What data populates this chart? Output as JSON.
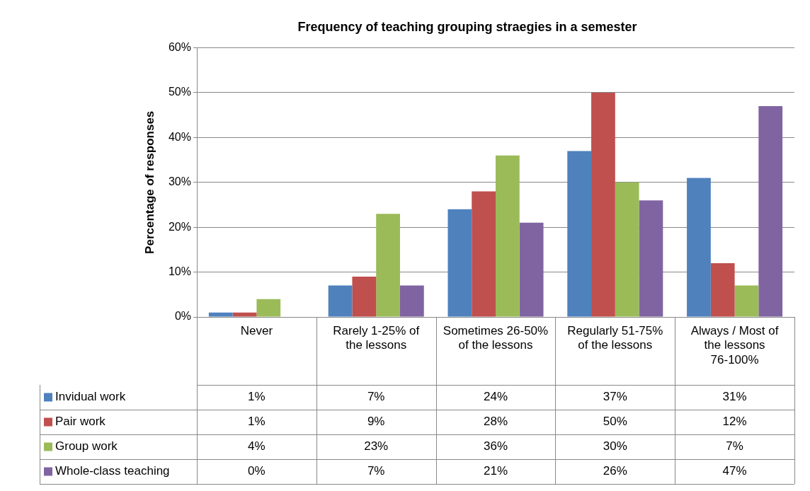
{
  "chart_data": {
    "type": "bar",
    "title": "Frequency of teaching grouping straegies in a semester",
    "ylabel": "Percentage of responses",
    "categories": [
      "Never",
      "Rarely 1-25% of the lessons",
      "Sometimes 26-50% of the lessons",
      "Regularly 51-75% of the lessons",
      "Always / Most of the lessons 76-100%"
    ],
    "series": [
      {
        "name": "Invidual work",
        "color": "#4f81bd",
        "values": [
          1,
          7,
          24,
          37,
          31
        ],
        "value_labels": [
          "1%",
          "7%",
          "24%",
          "37%",
          "31%"
        ]
      },
      {
        "name": "Pair work",
        "color": "#c0504d",
        "values": [
          1,
          9,
          28,
          50,
          12
        ],
        "value_labels": [
          "1%",
          "9%",
          "28%",
          "50%",
          "12%"
        ]
      },
      {
        "name": "Group work",
        "color": "#9bbb59",
        "values": [
          4,
          23,
          36,
          30,
          7
        ],
        "value_labels": [
          "4%",
          "23%",
          "36%",
          "30%",
          "7%"
        ]
      },
      {
        "name": "Whole-class teaching",
        "color": "#8064a2",
        "values": [
          0,
          7,
          21,
          26,
          47
        ],
        "value_labels": [
          "0%",
          "7%",
          "21%",
          "26%",
          "47%"
        ]
      }
    ],
    "ylim": [
      0,
      60
    ],
    "yticks": [
      {
        "value": 0,
        "label": "0%"
      },
      {
        "value": 10,
        "label": "10%"
      },
      {
        "value": 20,
        "label": "20%"
      },
      {
        "value": 30,
        "label": "30%"
      },
      {
        "value": 40,
        "label": "40%"
      },
      {
        "value": 50,
        "label": "50%"
      },
      {
        "value": 60,
        "label": "60%"
      }
    ],
    "grid": "y",
    "legend": "bottom"
  }
}
